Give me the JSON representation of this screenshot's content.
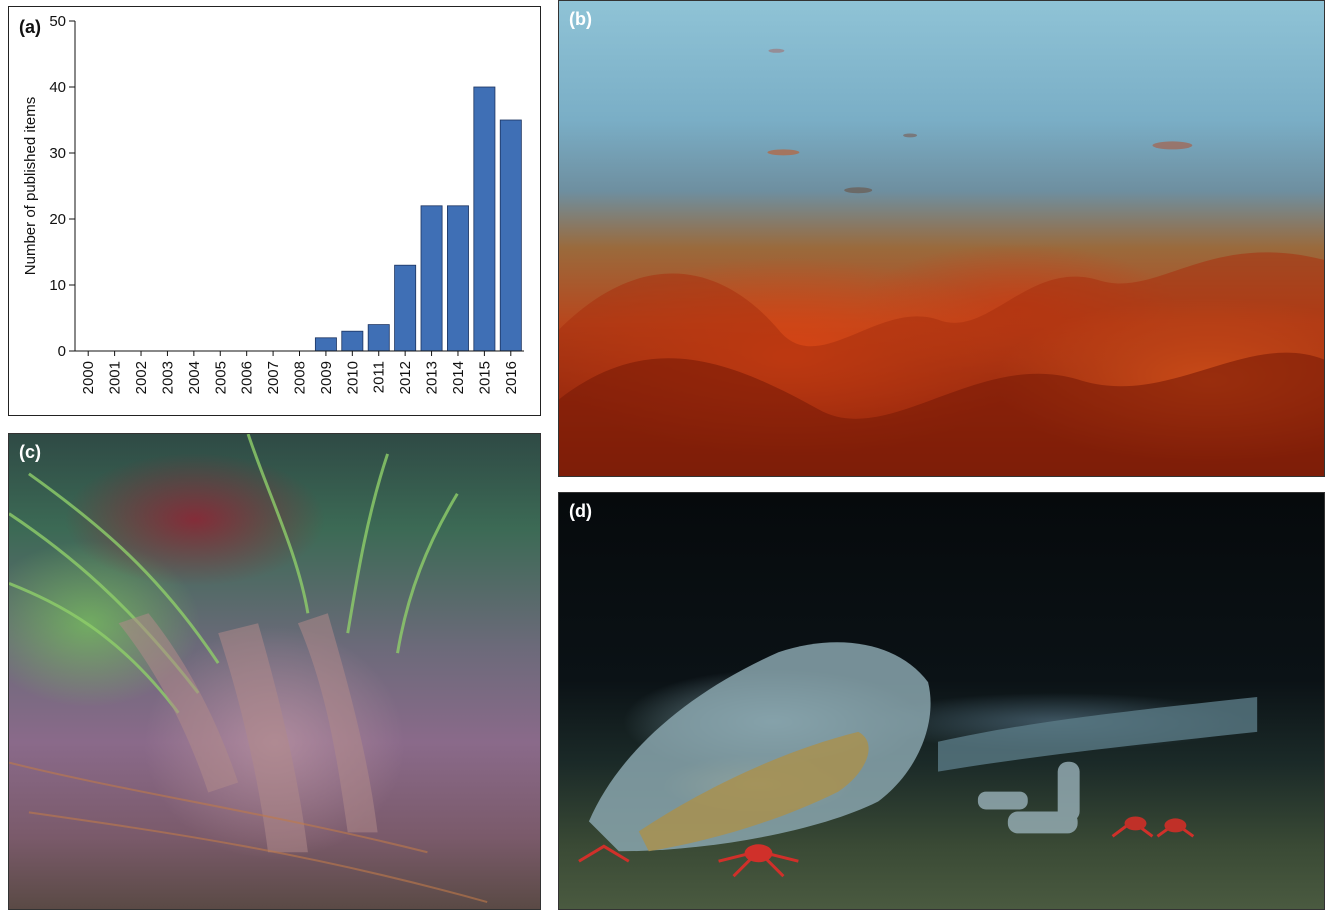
{
  "panels": {
    "a": {
      "label": "(a)"
    },
    "b": {
      "label": "(b)",
      "subject": "kelp-forest-photo"
    },
    "c": {
      "label": "(c)",
      "subject": "seagrass-and-kelp-photo"
    },
    "d": {
      "label": "(d)",
      "subject": "whale-skeleton-seafloor-photo"
    }
  },
  "chart_data": {
    "type": "bar",
    "title": "",
    "xlabel": "",
    "ylabel": "Number of published items",
    "categories": [
      "2000",
      "2001",
      "2002",
      "2003",
      "2004",
      "2005",
      "2006",
      "2007",
      "2008",
      "2009",
      "2010",
      "2011",
      "2012",
      "2013",
      "2014",
      "2015",
      "2016"
    ],
    "values": [
      0,
      0,
      0,
      0,
      0,
      0,
      0,
      0,
      0,
      2,
      3,
      4,
      13,
      22,
      22,
      40,
      35
    ],
    "ylim": [
      0,
      50
    ],
    "yticks": [
      0,
      10,
      20,
      30,
      40,
      50
    ],
    "bar_color": "#3f6fb5",
    "grid": false
  }
}
